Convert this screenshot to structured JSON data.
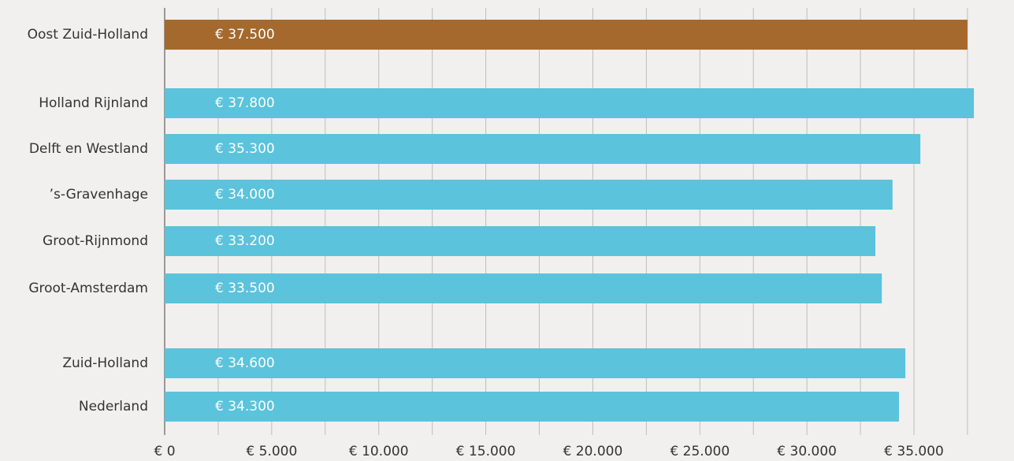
{
  "chart_data": {
    "type": "barh",
    "categories": [
      "Oost Zuid-Holland",
      null,
      "Holland Rijnland",
      "Delft en Westland",
      "’s-Gravenhage",
      "Groot-Rijnmond",
      "Groot-Amsterdam",
      null,
      "Zuid-Holland",
      "Nederland"
    ],
    "values": [
      37500,
      null,
      37800,
      35300,
      34000,
      33200,
      33500,
      null,
      34600,
      34300
    ],
    "value_labels": [
      "€ 37.500",
      null,
      "€ 37.800",
      "€ 35.300",
      "€ 34.000",
      "€ 33.200",
      "€ 33.500",
      null,
      "€ 34.600",
      "€ 34.300"
    ],
    "colors": [
      "#a5692e",
      null,
      "#5bc3dc",
      "#5bc3dc",
      "#5bc3dc",
      "#5bc3dc",
      "#5bc3dc",
      null,
      "#5bc3dc",
      "#5bc3dc"
    ],
    "xlim": [
      0,
      39600
    ],
    "xticks": [
      {
        "value": 0,
        "label": "€ 0"
      },
      {
        "value": 5000,
        "label": "€ 5.000"
      },
      {
        "value": 10000,
        "label": "€ 10.000"
      },
      {
        "value": 15000,
        "label": "€ 15.000"
      },
      {
        "value": 20000,
        "label": "€ 20.000"
      },
      {
        "value": 25000,
        "label": "€ 25.000"
      },
      {
        "value": 30000,
        "label": "€ 30.000"
      },
      {
        "value": 35000,
        "label": "€ 35.000"
      }
    ],
    "minor_xticks": [
      2500,
      7500,
      12500,
      17500,
      22500,
      27500,
      32500,
      37500
    ],
    "grid": true
  }
}
